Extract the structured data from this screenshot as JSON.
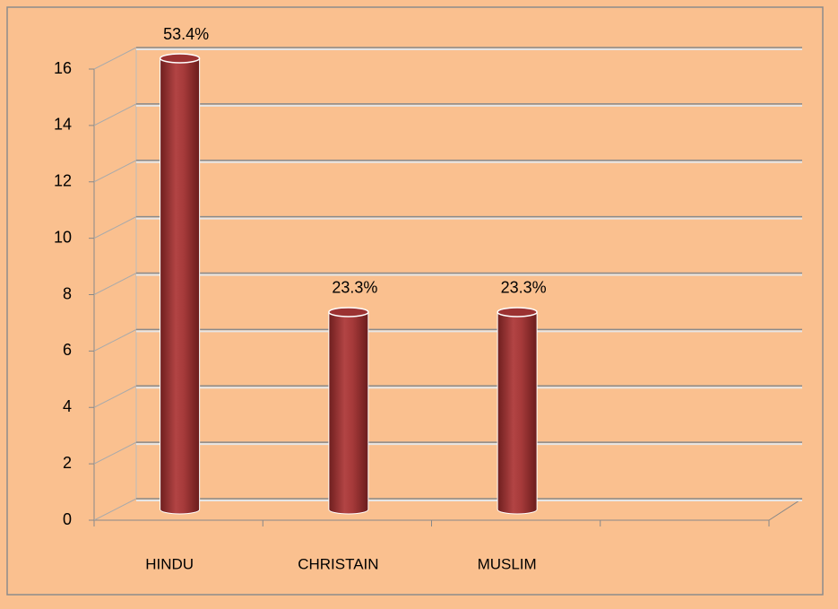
{
  "chart_data": {
    "type": "bar3d",
    "categories": [
      "HINDU",
      "CHRISTAIN",
      "MUSLIM",
      null
    ],
    "values": [
      16,
      7,
      7,
      null
    ],
    "annotations": [
      "53.4%",
      "23.3%",
      "23.3%"
    ],
    "color": "#9b3232",
    "ylim": [
      0,
      16
    ],
    "yticks": [
      0,
      2,
      4,
      6,
      8,
      10,
      12,
      14,
      16
    ],
    "grid": true
  }
}
